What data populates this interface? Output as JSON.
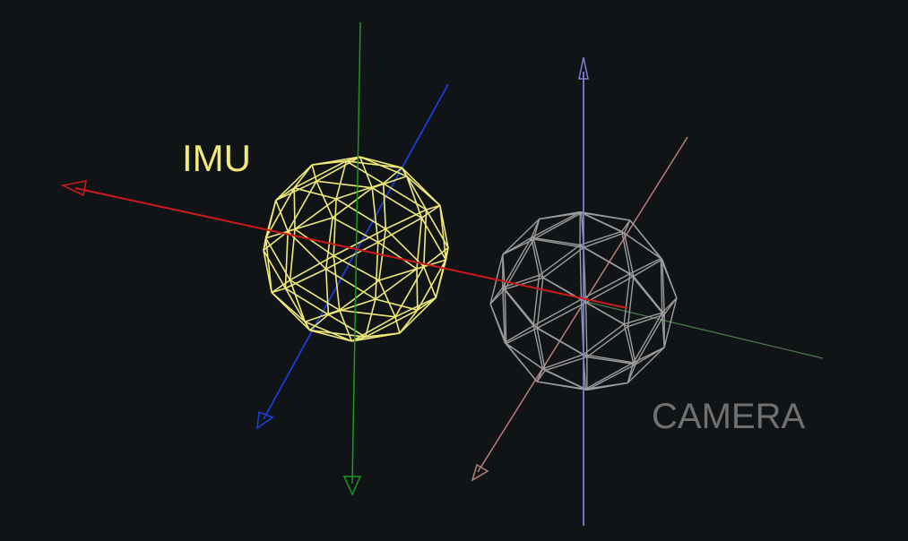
{
  "labels": {
    "imu": "IMU",
    "camera": "CAMERA"
  },
  "frames": {
    "imu": {
      "sphere_color": "#efe97a",
      "axis_colors": {
        "x": "#cc1a1a",
        "y": "#1a9a1a",
        "z": "#1a3fd8"
      }
    },
    "camera": {
      "sphere_color": "#9c9c9c",
      "label_color": "#707070",
      "axis_colors": {
        "x": "#b87f7a",
        "y": "#4f7a4f",
        "z": "#7d7ed6"
      }
    }
  },
  "background_color": "#111417"
}
